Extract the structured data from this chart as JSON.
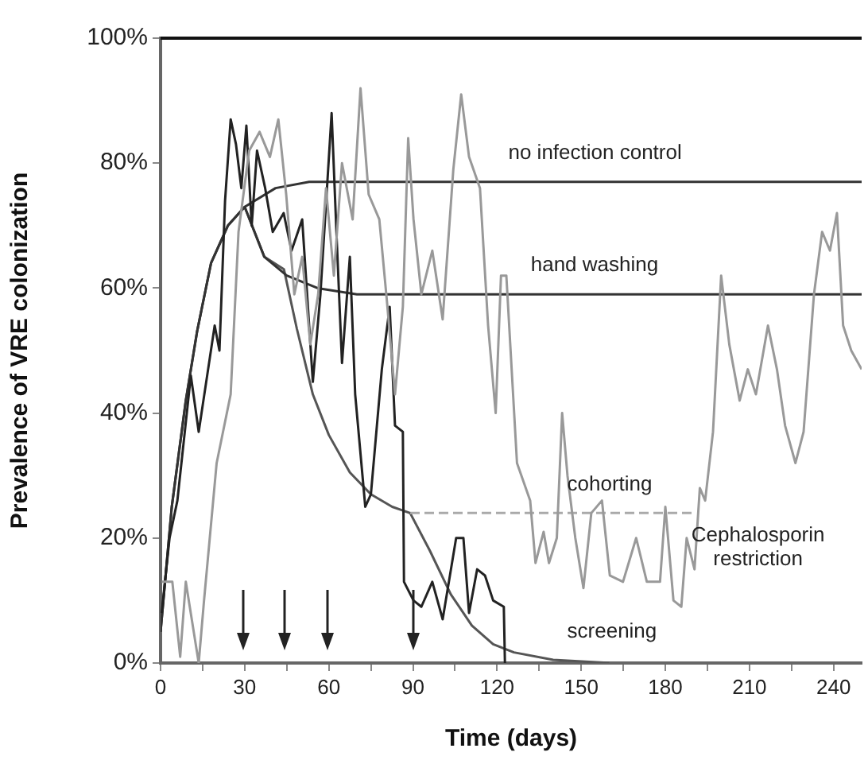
{
  "chart_data": {
    "type": "line",
    "xlabel": "Time (days)",
    "ylabel": "Prevalence of VRE colonization",
    "xlim": [
      0,
      250
    ],
    "xticks": [
      0,
      {
        "value": 15,
        "label": null
      },
      30,
      {
        "value": 45,
        "label": null
      },
      60,
      {
        "value": 75,
        "label": null
      },
      90,
      {
        "value": 105,
        "label": null
      },
      120,
      {
        "value": 135,
        "label": null
      },
      150,
      {
        "value": 165,
        "label": null
      },
      180,
      {
        "value": 195,
        "label": null
      },
      210,
      {
        "value": 225,
        "label": null
      },
      240
    ],
    "ylim": [
      0,
      100
    ],
    "yticks": [
      {
        "value": 0,
        "label": "0%"
      },
      {
        "value": 20,
        "label": "20%"
      },
      {
        "value": 40,
        "label": "40%"
      },
      {
        "value": 60,
        "label": "60%"
      },
      {
        "value": 80,
        "label": "80%"
      },
      {
        "value": 100,
        "label": "100%"
      }
    ],
    "grid": false,
    "legend": false,
    "marker": "none",
    "series": [
      {
        "color": "#999999",
        "x": [
          0.4,
          4.2,
          7,
          9,
          13.6,
          15.5,
          20,
          25,
          27.8,
          31.6,
          35.3,
          39,
          42,
          44.8,
          47.7,
          50.5,
          53.4,
          56.2,
          59,
          61.8,
          64.7,
          68.5,
          71.3,
          74.2,
          78,
          80.7,
          83.6,
          86.4,
          88.3,
          90.2,
          93,
          96.9,
          100.6,
          104.4,
          107.2,
          110,
          113.9,
          116.8,
          119.5,
          121.4,
          123.3,
          127.1,
          131.8,
          133.7,
          136.6,
          138.5,
          141.3,
          143.2,
          145.1,
          147.9,
          150.8,
          153.6,
          157.4,
          160.2,
          164.9,
          169.6,
          173.4,
          178.1,
          180,
          182.9,
          185.7,
          187.6,
          190.4,
          192.3,
          194.2,
          197,
          199.9,
          202.8,
          206.5,
          209.4,
          212.3,
          216.6,
          219.8,
          222.7,
          226.4,
          229.3,
          233,
          235.9,
          238.7,
          241.2,
          243.4,
          246.3,
          250
        ],
        "values": [
          13,
          13,
          1,
          13,
          0,
          10,
          32,
          43,
          69,
          82,
          85,
          81,
          87,
          75,
          59,
          65,
          51,
          59,
          76,
          62,
          80,
          71,
          92,
          75,
          71,
          58,
          43,
          57,
          84,
          71,
          59,
          66,
          55,
          79,
          91,
          81,
          76,
          54,
          40,
          62,
          62,
          32,
          26,
          16,
          21,
          16,
          20,
          40,
          30,
          20,
          12,
          24,
          26,
          14,
          13,
          20,
          13,
          13,
          25,
          10,
          9,
          20,
          15,
          28,
          26,
          37,
          62,
          51,
          42,
          47,
          43,
          54,
          47,
          38,
          32,
          37,
          59,
          69,
          66,
          72,
          54,
          50,
          47
        ]
      },
      {
        "color": "#222222",
        "x": [
          0.4,
          3.2,
          6,
          10.8,
          13.6,
          19.3,
          21,
          23,
          25,
          26.9,
          28.8,
          30.6,
          32.5,
          34.4,
          37.3,
          40,
          43.9,
          46.7,
          50.5,
          54.3,
          57,
          61,
          62.8,
          64.7,
          67.5,
          69.4,
          73,
          75,
          78.9,
          81.7,
          83.6,
          86.4,
          86.8,
          90.2,
          93,
          96.9,
          100.6,
          105.4,
          108,
          110,
          112.9,
          115.7,
          118.6,
          122.4,
          122.8
        ],
        "values": [
          8,
          20,
          26,
          46,
          37,
          54,
          50,
          74,
          87,
          83,
          76,
          86,
          70,
          82,
          76,
          69,
          72,
          66,
          71,
          45,
          59,
          88,
          68,
          48,
          65,
          43,
          25,
          27,
          47,
          57,
          38,
          37,
          13,
          10,
          9,
          13,
          7,
          20,
          20,
          8,
          15,
          14,
          10,
          9,
          0
        ]
      },
      {
        "color": "#333333",
        "x": [
          0,
          4,
          9,
          13,
          18,
          24,
          30,
          41,
          53,
          250
        ],
        "values": [
          5,
          25,
          42,
          53,
          64,
          70,
          73,
          76,
          77,
          77
        ]
      },
      {
        "color": "#333333",
        "x": [
          0,
          4,
          9,
          13,
          18,
          24,
          30,
          37,
          45,
          56,
          70,
          250
        ],
        "values": [
          5,
          25,
          42,
          53,
          64,
          70,
          73,
          65,
          62,
          60,
          59,
          59
        ]
      },
      {
        "color": "#555555",
        "x": [
          30,
          37,
          44,
          48.6,
          54.3,
          60,
          67.5,
          75,
          82.6,
          89
        ],
        "values": [
          73,
          65,
          63,
          53.5,
          43,
          36.5,
          30.5,
          27,
          25,
          24
        ]
      },
      {
        "color": "#aaaaaa",
        "line_style": "dashed",
        "x": [
          89,
          191
        ],
        "values": [
          24,
          24
        ]
      },
      {
        "color": "#555555",
        "x": [
          89,
          96,
          103.5,
          111,
          118.6,
          126,
          140,
          160
        ],
        "values": [
          24,
          18,
          11,
          6,
          3,
          1.7,
          0.5,
          0
        ]
      }
    ],
    "annotations": [
      {
        "text": "no infection control",
        "x": 124,
        "y": 77
      },
      {
        "text": "hand washing",
        "x": 132,
        "y": 59
      },
      {
        "text": "cohorting",
        "x": 145,
        "y": 24
      },
      {
        "text": "Cephalosporin restriction",
        "x": 191,
        "y": 24
      },
      {
        "text": "screening",
        "x": 145,
        "y": 0.4
      }
    ]
  }
}
